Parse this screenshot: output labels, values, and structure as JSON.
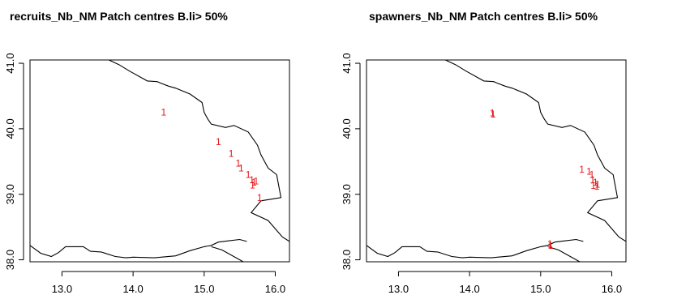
{
  "chart_data": [
    {
      "type": "scatter",
      "title": "recruits_Nb_NM Patch centres B.li> 50%",
      "xlabel": "",
      "ylabel": "",
      "xlim": [
        12.55,
        16.2
      ],
      "ylim": [
        37.97,
        41.05
      ],
      "x_ticks": [
        "13.0",
        "14.0",
        "15.0",
        "16.0"
      ],
      "y_ticks": [
        "38.0",
        "39.0",
        "40.0",
        "41.0"
      ],
      "marker_label": "1",
      "marker_color": "#e31a1c",
      "points": [
        {
          "x": 14.43,
          "y": 40.25
        },
        {
          "x": 15.2,
          "y": 39.8
        },
        {
          "x": 15.38,
          "y": 39.62
        },
        {
          "x": 15.48,
          "y": 39.47
        },
        {
          "x": 15.52,
          "y": 39.4
        },
        {
          "x": 15.62,
          "y": 39.3
        },
        {
          "x": 15.67,
          "y": 39.22
        },
        {
          "x": 15.7,
          "y": 39.18
        },
        {
          "x": 15.73,
          "y": 39.2
        },
        {
          "x": 15.68,
          "y": 39.14
        },
        {
          "x": 15.78,
          "y": 38.95
        }
      ]
    },
    {
      "type": "scatter",
      "title": "spawners_Nb_NM Patch centres B.li> 50%",
      "xlabel": "",
      "ylabel": "",
      "xlim": [
        12.55,
        16.2
      ],
      "ylim": [
        37.97,
        41.05
      ],
      "x_ticks": [
        "13.0",
        "14.0",
        "15.0",
        "16.0"
      ],
      "y_ticks": [
        "38.0",
        "39.0",
        "40.0",
        "41.0"
      ],
      "marker_label": "1",
      "marker_color": "#e31a1c",
      "points": [
        {
          "x": 14.32,
          "y": 40.24
        },
        {
          "x": 14.33,
          "y": 40.22
        },
        {
          "x": 15.58,
          "y": 39.38
        },
        {
          "x": 15.68,
          "y": 39.35
        },
        {
          "x": 15.72,
          "y": 39.3
        },
        {
          "x": 15.73,
          "y": 39.22
        },
        {
          "x": 15.77,
          "y": 39.18
        },
        {
          "x": 15.8,
          "y": 39.15
        },
        {
          "x": 15.74,
          "y": 39.13
        },
        {
          "x": 15.79,
          "y": 39.12
        },
        {
          "x": 15.13,
          "y": 38.24
        },
        {
          "x": 15.14,
          "y": 38.22
        }
      ]
    }
  ],
  "coastline_color": "#000000",
  "coastline_main": [
    [
      13.6,
      41.08
    ],
    [
      13.8,
      40.98
    ],
    [
      13.95,
      40.88
    ],
    [
      14.2,
      40.73
    ],
    [
      14.34,
      40.72
    ],
    [
      14.38,
      40.7
    ],
    [
      14.5,
      40.65
    ],
    [
      14.6,
      40.62
    ],
    [
      14.8,
      40.53
    ],
    [
      14.97,
      40.4
    ],
    [
      15.0,
      40.25
    ],
    [
      15.05,
      40.15
    ],
    [
      15.1,
      40.07
    ],
    [
      15.3,
      40.02
    ],
    [
      15.42,
      40.05
    ],
    [
      15.62,
      39.95
    ],
    [
      15.75,
      39.75
    ],
    [
      15.8,
      39.6
    ],
    [
      15.9,
      39.4
    ],
    [
      16.02,
      39.3
    ],
    [
      16.08,
      38.95
    ],
    [
      15.8,
      38.9
    ],
    [
      15.66,
      38.72
    ],
    [
      15.9,
      38.6
    ],
    [
      16.1,
      38.35
    ],
    [
      16.2,
      38.28
    ]
  ],
  "coastline_bottom": [
    [
      12.55,
      38.22
    ],
    [
      12.7,
      38.1
    ],
    [
      12.85,
      38.05
    ],
    [
      12.95,
      38.11
    ],
    [
      13.05,
      38.2
    ],
    [
      13.3,
      38.2
    ],
    [
      13.4,
      38.13
    ],
    [
      13.55,
      38.12
    ],
    [
      13.75,
      38.05
    ],
    [
      13.9,
      38.03
    ],
    [
      14.0,
      38.04
    ],
    [
      14.3,
      38.03
    ],
    [
      14.6,
      38.06
    ],
    [
      14.8,
      38.14
    ],
    [
      15.0,
      38.2
    ],
    [
      15.1,
      38.22
    ],
    [
      15.2,
      38.27
    ],
    [
      15.35,
      38.29
    ],
    [
      15.5,
      38.31
    ],
    [
      15.6,
      38.28
    ]
  ],
  "coastline_bottom_tail": [
    [
      15.1,
      38.2
    ],
    [
      15.25,
      38.15
    ],
    [
      15.55,
      37.97
    ]
  ]
}
